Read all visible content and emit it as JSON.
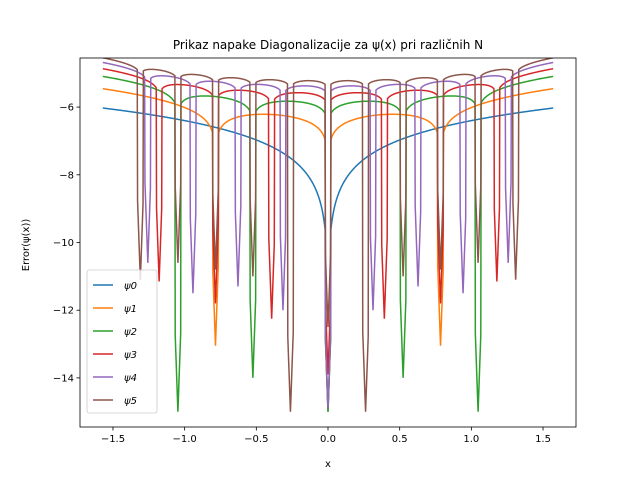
{
  "chart_data": {
    "type": "line",
    "title": "Prikaz napake Diagonalizacije za ψ(x) pri različnih N",
    "xlabel": "x",
    "ylabel": "Error(ψ(x))",
    "xlim": [
      -1.73,
      1.73
    ],
    "ylim": [
      -15.45,
      -4.55
    ],
    "xticks": [
      -1.5,
      -1.0,
      -0.5,
      0.0,
      0.5,
      1.0,
      1.5
    ],
    "xtick_labels": [
      "−1.5",
      "−1.0",
      "−0.5",
      "0.0",
      "0.5",
      "1.0",
      "1.5"
    ],
    "yticks": [
      -14,
      -12,
      -10,
      -8,
      -6
    ],
    "ytick_labels": [
      "−14",
      "−12",
      "−10",
      "−8",
      "−6"
    ],
    "grid": false,
    "legend_position": "lower-left",
    "x_range": [
      -1.5708,
      1.5708
    ],
    "series": [
      {
        "name": "ψ0",
        "color": "#1f77b4",
        "amplitude": -6.4,
        "zeros": [
          0
        ],
        "depths": [
          -15.0
        ]
      },
      {
        "name": "ψ1",
        "color": "#ff7f0e",
        "amplitude": -5.75,
        "zeros": [
          -0.785,
          0,
          0.785
        ],
        "depths": [
          -13.05,
          -14.95,
          -13.05
        ]
      },
      {
        "name": "ψ2",
        "color": "#2ca02c",
        "amplitude": -5.35,
        "zeros": [
          -1.047,
          -0.524,
          0,
          0.524,
          1.047
        ],
        "depths": [
          -15.0,
          -14.0,
          -15.0,
          -14.0,
          -15.0
        ]
      },
      {
        "name": "ψ3",
        "color": "#d62728",
        "amplitude": -5.1,
        "zeros": [
          -1.178,
          -0.785,
          -0.393,
          0,
          0.393,
          0.785,
          1.178
        ],
        "depths": [
          -11.15,
          -11.8,
          -12.25,
          -13.9,
          -12.25,
          -11.8,
          -11.15
        ]
      },
      {
        "name": "ψ4",
        "color": "#9467bd",
        "amplitude": -4.9,
        "zeros": [
          -1.257,
          -0.942,
          -0.628,
          -0.314,
          0,
          0.314,
          0.628,
          0.942,
          1.257
        ],
        "depths": [
          -10.6,
          -11.5,
          -11.3,
          -12.0,
          -14.9,
          -12.0,
          -11.3,
          -11.5,
          -10.6
        ]
      },
      {
        "name": "ψ5",
        "color": "#8c564b",
        "amplitude": -4.75,
        "zeros": [
          -1.309,
          -1.047,
          -0.785,
          -0.524,
          -0.262,
          0,
          0.262,
          0.524,
          0.785,
          1.047,
          1.309
        ],
        "depths": [
          -11.1,
          -10.6,
          -10.8,
          -11.0,
          -15.0,
          -12.5,
          -15.0,
          -11.0,
          -10.8,
          -10.6,
          -11.1
        ]
      }
    ]
  }
}
